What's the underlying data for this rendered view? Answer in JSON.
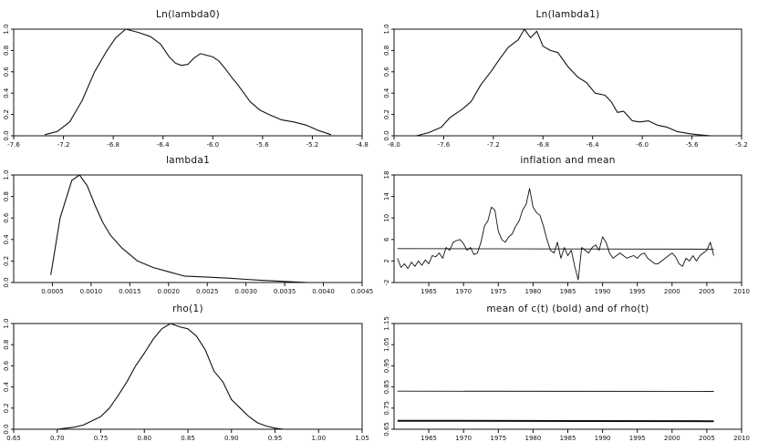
{
  "chart_data": [
    {
      "type": "line",
      "title": "Ln(lambda0)",
      "xlim": [
        -7.6,
        -4.8
      ],
      "ylim": [
        0,
        1
      ],
      "xticks": [
        -7.6,
        -7.2,
        -6.8,
        -6.4,
        -6.0,
        -5.6,
        -5.2,
        -4.8
      ],
      "xtick_labels": [
        "-7.6",
        "-7.2",
        "-6.8",
        "-6.4",
        "-6.0",
        "-5.6",
        "-5.2",
        "-4.8"
      ],
      "yticks": [
        0,
        0.2,
        0.4,
        0.6,
        0.8,
        1.0
      ],
      "ytick_labels": [
        "0.0",
        "0.2",
        "0.4",
        "0.6",
        "0.8",
        "1.0"
      ],
      "series": [
        {
          "x": [
            -7.35,
            -7.25,
            -7.15,
            -7.05,
            -6.95,
            -6.85,
            -6.78,
            -6.7,
            -6.6,
            -6.5,
            -6.42,
            -6.35,
            -6.3,
            -6.25,
            -6.2,
            -6.15,
            -6.1,
            -6.0,
            -5.95,
            -5.9,
            -5.85,
            -5.8,
            -5.75,
            -5.7,
            -5.62,
            -5.55,
            -5.45,
            -5.35,
            -5.25,
            -5.15,
            -5.05
          ],
          "y": [
            0.01,
            0.04,
            0.13,
            0.33,
            0.6,
            0.8,
            0.92,
            1.0,
            0.97,
            0.93,
            0.86,
            0.74,
            0.68,
            0.66,
            0.67,
            0.73,
            0.77,
            0.74,
            0.7,
            0.63,
            0.55,
            0.48,
            0.4,
            0.32,
            0.24,
            0.2,
            0.15,
            0.13,
            0.1,
            0.05,
            0.01
          ]
        }
      ]
    },
    {
      "type": "line",
      "title": "Ln(lambda1)",
      "xlim": [
        -8.0,
        -5.2
      ],
      "ylim": [
        0,
        1
      ],
      "xticks": [
        -8.0,
        -7.6,
        -7.2,
        -6.8,
        -6.4,
        -6.0,
        -5.6,
        -5.2
      ],
      "xtick_labels": [
        "-8.0",
        "-7.6",
        "-7.2",
        "-6.8",
        "-6.4",
        "-6.0",
        "-5.6",
        "-5.2"
      ],
      "yticks": [
        0,
        0.2,
        0.4,
        0.6,
        0.8,
        1.0
      ],
      "ytick_labels": [
        "0.0",
        "0.2",
        "0.4",
        "0.6",
        "0.8",
        "1.0"
      ],
      "series": [
        {
          "x": [
            -7.82,
            -7.72,
            -7.62,
            -7.55,
            -7.45,
            -7.38,
            -7.3,
            -7.22,
            -7.15,
            -7.08,
            -7.0,
            -6.95,
            -6.9,
            -6.85,
            -6.8,
            -6.74,
            -6.68,
            -6.6,
            -6.52,
            -6.45,
            -6.38,
            -6.3,
            -6.25,
            -6.2,
            -6.15,
            -6.08,
            -6.02,
            -5.95,
            -5.88,
            -5.8,
            -5.72,
            -5.62,
            -5.55,
            -5.45
          ],
          "y": [
            0.0,
            0.03,
            0.08,
            0.17,
            0.25,
            0.32,
            0.48,
            0.6,
            0.72,
            0.83,
            0.9,
            1.0,
            0.92,
            0.98,
            0.84,
            0.8,
            0.78,
            0.65,
            0.55,
            0.5,
            0.4,
            0.38,
            0.32,
            0.22,
            0.23,
            0.14,
            0.13,
            0.14,
            0.1,
            0.08,
            0.04,
            0.02,
            0.01,
            0.0
          ]
        }
      ]
    },
    {
      "type": "line",
      "title": "lambda1",
      "xlim": [
        0.0,
        0.0045
      ],
      "ylim": [
        0,
        1
      ],
      "xticks": [
        0.0005,
        0.001,
        0.0015,
        0.002,
        0.0025,
        0.003,
        0.0035,
        0.004,
        0.0045
      ],
      "xtick_labels": [
        "0.0005",
        "0.0010",
        "0.0015",
        "0.0020",
        "0.0025",
        "0.0030",
        "0.0035",
        "0.0040",
        "0.0045"
      ],
      "yticks": [
        0,
        0.2,
        0.4,
        0.6,
        0.8,
        1.0
      ],
      "ytick_labels": [
        "0.0",
        "0.2",
        "0.4",
        "0.6",
        "0.8",
        "1.0"
      ],
      "series": [
        {
          "x": [
            0.00048,
            0.0006,
            0.00075,
            0.00085,
            0.00095,
            0.00105,
            0.00115,
            0.00125,
            0.0014,
            0.0016,
            0.0018,
            0.002,
            0.0022,
            0.0025,
            0.0028,
            0.003,
            0.0032,
            0.0035,
            0.0038,
            0.004,
            0.0042
          ],
          "y": [
            0.07,
            0.6,
            0.95,
            1.0,
            0.9,
            0.72,
            0.56,
            0.44,
            0.32,
            0.2,
            0.14,
            0.1,
            0.06,
            0.05,
            0.04,
            0.03,
            0.02,
            0.01,
            0.0,
            0.0,
            0.0
          ]
        }
      ]
    },
    {
      "type": "line",
      "title": "inflation and mean",
      "xlim": [
        1960,
        2010
      ],
      "ylim": [
        -2,
        18
      ],
      "xticks": [
        1965,
        1970,
        1975,
        1980,
        1985,
        1990,
        1995,
        2000,
        2005,
        2010
      ],
      "xtick_labels": [
        "1965",
        "1970",
        "1975",
        "1980",
        "1985",
        "1990",
        "1995",
        "2000",
        "2005",
        "2010"
      ],
      "yticks": [
        -2,
        2,
        6,
        10,
        14,
        18
      ],
      "ytick_labels": [
        "-2",
        "2",
        "6",
        "10",
        "14",
        "18"
      ],
      "series": [
        {
          "x": [
            1960.5,
            1961,
            1961.5,
            1962,
            1962.5,
            1963,
            1963.5,
            1964,
            1964.5,
            1965,
            1965.5,
            1966,
            1966.5,
            1967,
            1967.5,
            1968,
            1968.5,
            1969,
            1969.5,
            1970,
            1970.5,
            1971,
            1971.5,
            1972,
            1972.5,
            1973,
            1973.5,
            1974,
            1974.5,
            1975,
            1975.5,
            1976,
            1976.5,
            1977,
            1977.5,
            1978,
            1978.5,
            1979,
            1979.5,
            1980,
            1980.5,
            1981,
            1981.5,
            1982,
            1982.5,
            1983,
            1983.5,
            1984,
            1984.5,
            1985,
            1985.5,
            1986,
            1986.5,
            1987,
            1987.5,
            1988,
            1988.5,
            1989,
            1989.5,
            1990,
            1990.5,
            1991,
            1991.5,
            1992,
            1992.5,
            1993,
            1993.5,
            1994,
            1994.5,
            1995,
            1995.5,
            1996,
            1996.5,
            1997,
            1997.5,
            1998,
            1998.5,
            1999,
            1999.5,
            2000,
            2000.5,
            2001,
            2001.5,
            2002,
            2002.5,
            2003,
            2003.5,
            2004,
            2004.5,
            2005,
            2005.5,
            2006
          ],
          "y": [
            2.5,
            0.8,
            1.5,
            0.6,
            1.8,
            1.0,
            2.0,
            1.2,
            2.2,
            1.5,
            3.0,
            2.8,
            3.5,
            2.5,
            4.5,
            4.0,
            5.5,
            5.8,
            6.0,
            5.2,
            4.0,
            4.5,
            3.2,
            3.5,
            5.5,
            8.5,
            9.5,
            12.0,
            11.5,
            7.5,
            6.0,
            5.5,
            6.5,
            7.0,
            8.5,
            9.5,
            11.5,
            12.5,
            15.5,
            12.0,
            11.0,
            10.5,
            8.5,
            6.0,
            4.0,
            3.5,
            5.5,
            2.5,
            4.5,
            3.0,
            4.0,
            1.0,
            -1.5,
            4.5,
            4.0,
            3.5,
            4.5,
            5.0,
            4.0,
            6.5,
            5.5,
            3.5,
            2.5,
            3.0,
            3.5,
            3.0,
            2.5,
            2.8,
            3.0,
            2.5,
            3.2,
            3.5,
            2.5,
            2.0,
            1.5,
            1.5,
            2.0,
            2.5,
            3.0,
            3.5,
            2.8,
            1.5,
            1.0,
            2.5,
            2.0,
            3.0,
            2.0,
            3.0,
            3.5,
            4.0,
            5.5,
            3.0
          ]
        },
        {
          "x": [
            1960.5,
            2006
          ],
          "y": [
            4.3,
            4.2
          ]
        }
      ]
    },
    {
      "type": "line",
      "title": "rho(1)",
      "xlim": [
        0.65,
        1.05
      ],
      "ylim": [
        0,
        1
      ],
      "xticks": [
        0.65,
        0.7,
        0.75,
        0.8,
        0.85,
        0.9,
        0.95,
        1.0,
        1.05
      ],
      "xtick_labels": [
        "0.65",
        "0.70",
        "0.75",
        "0.80",
        "0.85",
        "0.90",
        "0.95",
        "1.00",
        "1.05"
      ],
      "yticks": [
        0,
        0.2,
        0.4,
        0.6,
        0.8,
        1.0
      ],
      "ytick_labels": [
        "0.0",
        "0.2",
        "0.4",
        "0.6",
        "0.8",
        "1.0"
      ],
      "series": [
        {
          "x": [
            0.69,
            0.7,
            0.71,
            0.72,
            0.73,
            0.74,
            0.75,
            0.76,
            0.77,
            0.78,
            0.79,
            0.8,
            0.81,
            0.82,
            0.83,
            0.84,
            0.85,
            0.86,
            0.87,
            0.88,
            0.89,
            0.9,
            0.91,
            0.92,
            0.93,
            0.94,
            0.95,
            0.96,
            0.97
          ],
          "y": [
            0.0,
            0.0,
            0.01,
            0.02,
            0.04,
            0.08,
            0.12,
            0.2,
            0.32,
            0.45,
            0.6,
            0.72,
            0.85,
            0.95,
            1.0,
            0.97,
            0.95,
            0.88,
            0.75,
            0.55,
            0.45,
            0.28,
            0.2,
            0.12,
            0.06,
            0.03,
            0.01,
            0.0,
            0.0
          ]
        }
      ]
    },
    {
      "type": "line",
      "title": "mean of c(t) (bold) and of rho(t)",
      "xlim": [
        1960,
        2010
      ],
      "ylim": [
        0.65,
        1.15
      ],
      "xticks": [
        1965,
        1970,
        1975,
        1980,
        1985,
        1990,
        1995,
        2000,
        2005,
        2010
      ],
      "xtick_labels": [
        "1965",
        "1970",
        "1975",
        "1980",
        "1985",
        "1990",
        "1995",
        "2000",
        "2005",
        "2010"
      ],
      "yticks": [
        0.65,
        0.75,
        0.85,
        0.95,
        1.05,
        1.15
      ],
      "ytick_labels": [
        "0.65",
        "0.75",
        "0.85",
        "0.95",
        "1.05",
        "1.15"
      ],
      "series": [
        {
          "x": [
            1960.5,
            2006
          ],
          "y": [
            0.83,
            0.829
          ]
        },
        {
          "x": [
            1960.5,
            2006
          ],
          "y": [
            0.69,
            0.688
          ],
          "bold": true
        }
      ]
    }
  ]
}
